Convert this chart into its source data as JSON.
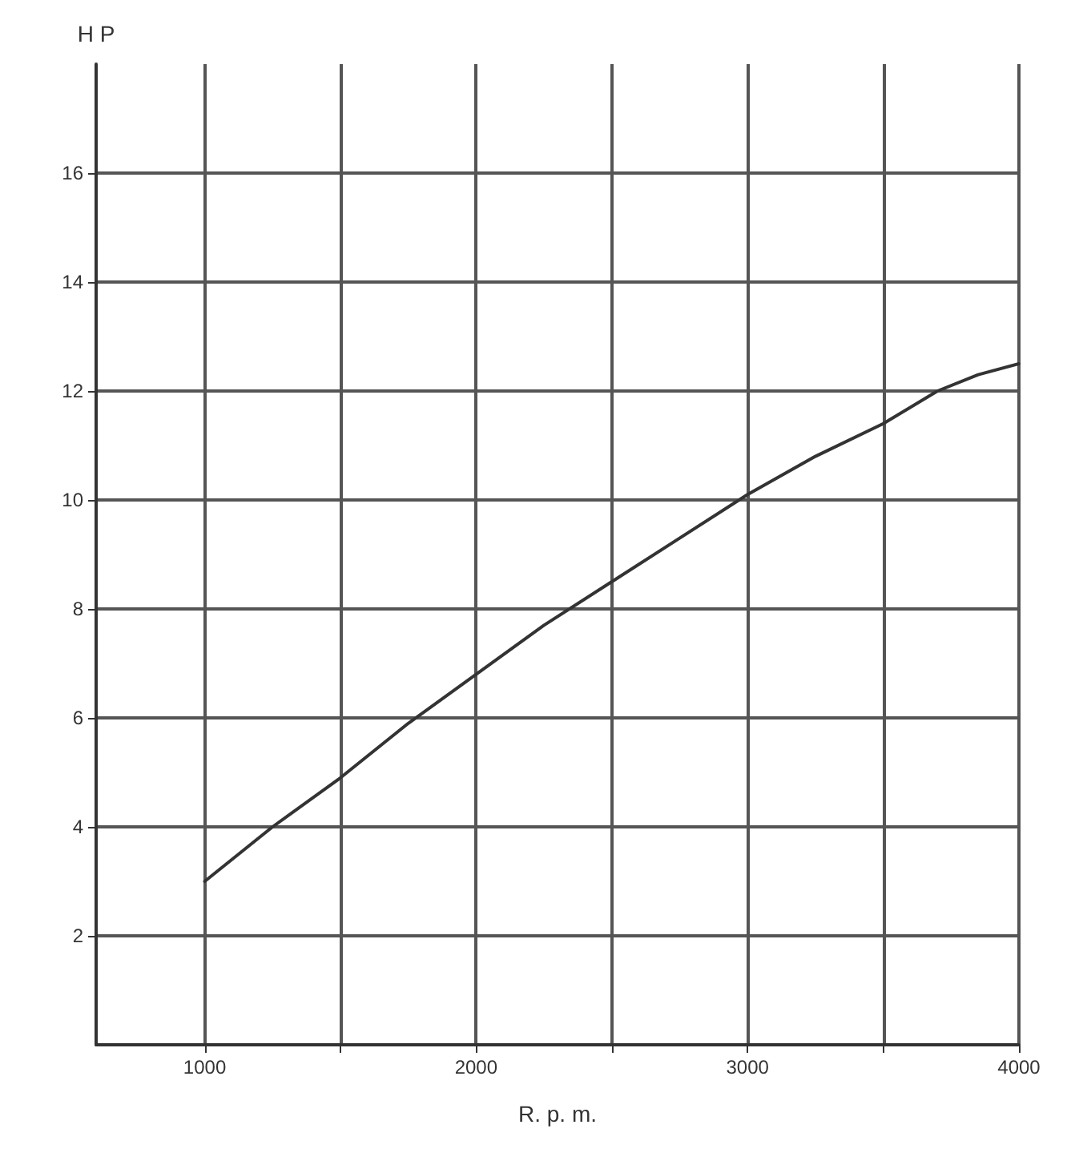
{
  "chart_data": {
    "type": "line",
    "ylabel": "H P",
    "xlabel": "R. p. m.",
    "x": [
      1000,
      1250,
      1500,
      1750,
      2000,
      2250,
      2500,
      2750,
      3000,
      3250,
      3500,
      3700,
      3850,
      4000
    ],
    "series": [
      {
        "color": "#333333",
        "values": [
          3.0,
          4.0,
          4.9,
          5.9,
          6.8,
          7.7,
          8.5,
          9.3,
          10.1,
          10.8,
          11.4,
          12.0,
          12.3,
          12.5
        ]
      }
    ],
    "xlim": [
      600,
      4000
    ],
    "ylim": [
      0,
      18
    ],
    "xticks": [
      1000,
      {
        "value": 1500,
        "label": null
      },
      2000,
      {
        "value": 2500,
        "label": null
      },
      3000,
      {
        "value": 3500,
        "label": null
      },
      4000
    ],
    "yticks": [
      2,
      4,
      6,
      8,
      10,
      12,
      14,
      16
    ],
    "grid": true,
    "marker": "none",
    "line_style": "solid"
  }
}
